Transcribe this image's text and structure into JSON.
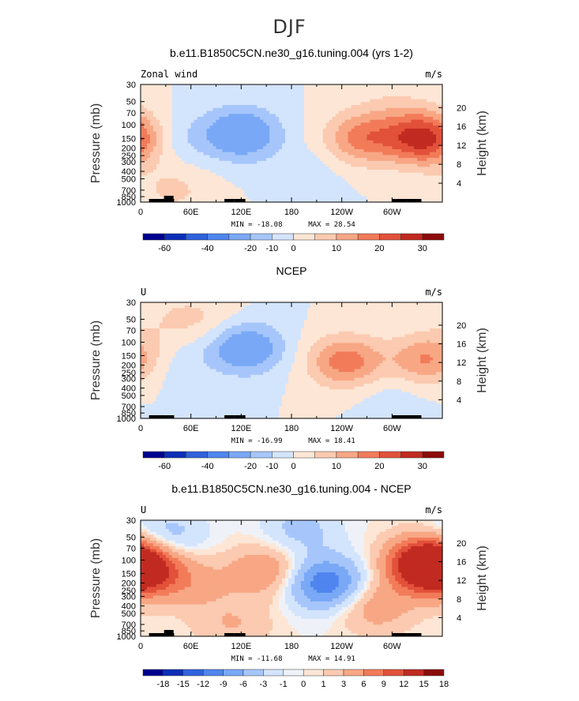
{
  "figure_title": "DJF",
  "colors": {
    "cb60": [
      "#00008f",
      "#0d2fb8",
      "#2f62dc",
      "#4f85ee",
      "#79a8f6",
      "#a6c6fb",
      "#d3e4fd",
      "#fde6d5",
      "#fbcab0",
      "#f8a785",
      "#f27b59",
      "#e2513a",
      "#c12a20",
      "#8c0b0b"
    ],
    "cb18": [
      "#00008f",
      "#0d2fb8",
      "#2f62dc",
      "#4f85ee",
      "#79a8f6",
      "#a6c6fb",
      "#d3e4fd",
      "#eef2f8",
      "#fde6d5",
      "#fbcab0",
      "#f8a785",
      "#f27b59",
      "#e2513a",
      "#c12a20",
      "#8c0b0b"
    ]
  },
  "chart_data": [
    {
      "type": "heatmap",
      "title": "b.e11.B1850C5CN.ne30_g16.tuning.004 (yrs 1-2)",
      "left_label": "Zonal wind",
      "units": "m/s",
      "ylabel": "Pressure (mb)",
      "y2label": "Height (km)",
      "xticks": [
        "0",
        "60E",
        "120E",
        "180",
        "120W",
        "60W"
      ],
      "yticks": [
        "30",
        "50",
        "70",
        "100",
        "150",
        "200",
        "250",
        "300",
        "400",
        "500",
        "700",
        "850",
        "1000"
      ],
      "y2ticks": [
        "20",
        "16",
        "12",
        "8",
        "4"
      ],
      "min_label": "MIN = -18.08",
      "max_label": "MAX = 28.54",
      "min": -18.08,
      "max": 28.54,
      "colorbar": [
        "-60",
        "-40",
        "-20",
        "-10",
        "0",
        "10",
        "20",
        "30"
      ],
      "palette": "cb60",
      "blobs": [
        {
          "lon": 340,
          "p": 150,
          "amp": 28
        },
        {
          "lon": 265,
          "p": 150,
          "amp": 17
        },
        {
          "lon": 120,
          "p": 130,
          "amp": -18
        },
        {
          "lon": 40,
          "p": 150,
          "amp": -5
        },
        {
          "lon": 40,
          "p": 700,
          "amp": 6
        },
        {
          "lon": 300,
          "p": 60,
          "amp": 4
        },
        {
          "lon": 200,
          "p": 400,
          "amp": -3
        }
      ]
    },
    {
      "type": "heatmap",
      "title": "NCEP",
      "left_label": "U",
      "units": "m/s",
      "ylabel": "Pressure (mb)",
      "y2label": "Height (km)",
      "xticks": [
        "0",
        "60E",
        "120E",
        "180",
        "120W",
        "60W"
      ],
      "yticks": [
        "30",
        "50",
        "70",
        "100",
        "150",
        "200",
        "250",
        "300",
        "400",
        "500",
        "700",
        "850",
        "1000"
      ],
      "y2ticks": [
        "20",
        "16",
        "12",
        "8",
        "4"
      ],
      "min_label": "MIN = -16.99",
      "max_label": "MAX = 18.41",
      "min": -16.99,
      "max": 18.41,
      "colorbar": [
        "-60",
        "-40",
        "-20",
        "-10",
        "0",
        "10",
        "20",
        "30"
      ],
      "palette": "cb60",
      "blobs": [
        {
          "lon": 245,
          "p": 180,
          "amp": 18
        },
        {
          "lon": 345,
          "p": 170,
          "amp": 17
        },
        {
          "lon": 125,
          "p": 120,
          "amp": -17
        },
        {
          "lon": 30,
          "p": 200,
          "amp": -5
        },
        {
          "lon": 40,
          "p": 50,
          "amp": 4
        },
        {
          "lon": 80,
          "p": 50,
          "amp": 4
        },
        {
          "lon": 300,
          "p": 500,
          "amp": -3
        }
      ]
    },
    {
      "type": "heatmap",
      "title": "b.e11.B1850C5CN.ne30_g16.tuning.004 - NCEP",
      "left_label": "U",
      "units": "m/s",
      "ylabel": "Pressure (mb)",
      "y2label": "Height (km)",
      "xticks": [
        "0",
        "60E",
        "120E",
        "180",
        "120W",
        "60W"
      ],
      "yticks": [
        "30",
        "50",
        "70",
        "100",
        "150",
        "200",
        "250",
        "300",
        "400",
        "500",
        "700",
        "850",
        "1000"
      ],
      "y2ticks": [
        "20",
        "16",
        "12",
        "8",
        "4"
      ],
      "min_label": "MIN = -11.68",
      "max_label": "MAX = 14.91",
      "min": -11.68,
      "max": 14.91,
      "colorbar": [
        "-18",
        "-15",
        "-12",
        "-9",
        "-6",
        "-3",
        "-1",
        "0",
        "1",
        "3",
        "6",
        "9",
        "12",
        "15",
        "18"
      ],
      "palette": "cb18",
      "blobs": [
        {
          "lon": 220,
          "p": 200,
          "amp": -11.7
        },
        {
          "lon": 340,
          "p": 110,
          "amp": 14.9
        },
        {
          "lon": 0,
          "p": 130,
          "amp": 13
        },
        {
          "lon": 60,
          "p": 200,
          "amp": 4
        },
        {
          "lon": 150,
          "p": 140,
          "amp": 6
        },
        {
          "lon": 30,
          "p": 50,
          "amp": -5
        },
        {
          "lon": 190,
          "p": 40,
          "amp": -4
        },
        {
          "lon": 280,
          "p": 400,
          "amp": 5
        },
        {
          "lon": 110,
          "p": 700,
          "amp": 3
        }
      ]
    }
  ]
}
